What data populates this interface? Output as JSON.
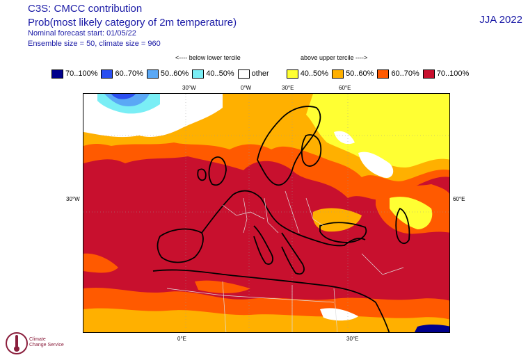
{
  "header": {
    "title": "C3S: CMCC contribution",
    "subtitle": "Prob(most likely category of 2m temperature)",
    "forecast_start": "Nominal forecast start: 01/05/22",
    "ensemble": "Ensemble size = 50, climate size = 960",
    "season": "JJA 2022"
  },
  "legend": {
    "below_label": "<---- below lower tercile",
    "above_label": "above upper tercile ---->",
    "items": [
      {
        "label": "70..100%",
        "color": "#00008b"
      },
      {
        "label": "60..70%",
        "color": "#2b4ff0"
      },
      {
        "label": "50..60%",
        "color": "#5aa8f5"
      },
      {
        "label": "40..50%",
        "color": "#7aeef5"
      },
      {
        "label": "other",
        "color": "#ffffff"
      },
      {
        "label": "40..50%",
        "color": "#ffff33"
      },
      {
        "label": "50..60%",
        "color": "#ffb000"
      },
      {
        "label": "60..70%",
        "color": "#ff5a00"
      },
      {
        "label": "70..100%",
        "color": "#c8102e"
      }
    ]
  },
  "map": {
    "top_labels": [
      "30°W",
      "0°W",
      "30°E",
      "60°E"
    ],
    "bottom_labels": [
      "0°E",
      "30°E"
    ],
    "left_label": "30°W",
    "right_label": "60°E",
    "colors": {
      "dark_red": "#c8102e",
      "red_orange": "#ff5a00",
      "orange": "#ffb000",
      "yellow": "#ffff33",
      "white": "#ffffff",
      "cyan": "#7aeef5",
      "light_blue": "#5aa8f5",
      "blue": "#2b4ff0",
      "navy": "#00008b"
    }
  },
  "logo": {
    "line1": "Climate",
    "line2": "Change Service"
  }
}
